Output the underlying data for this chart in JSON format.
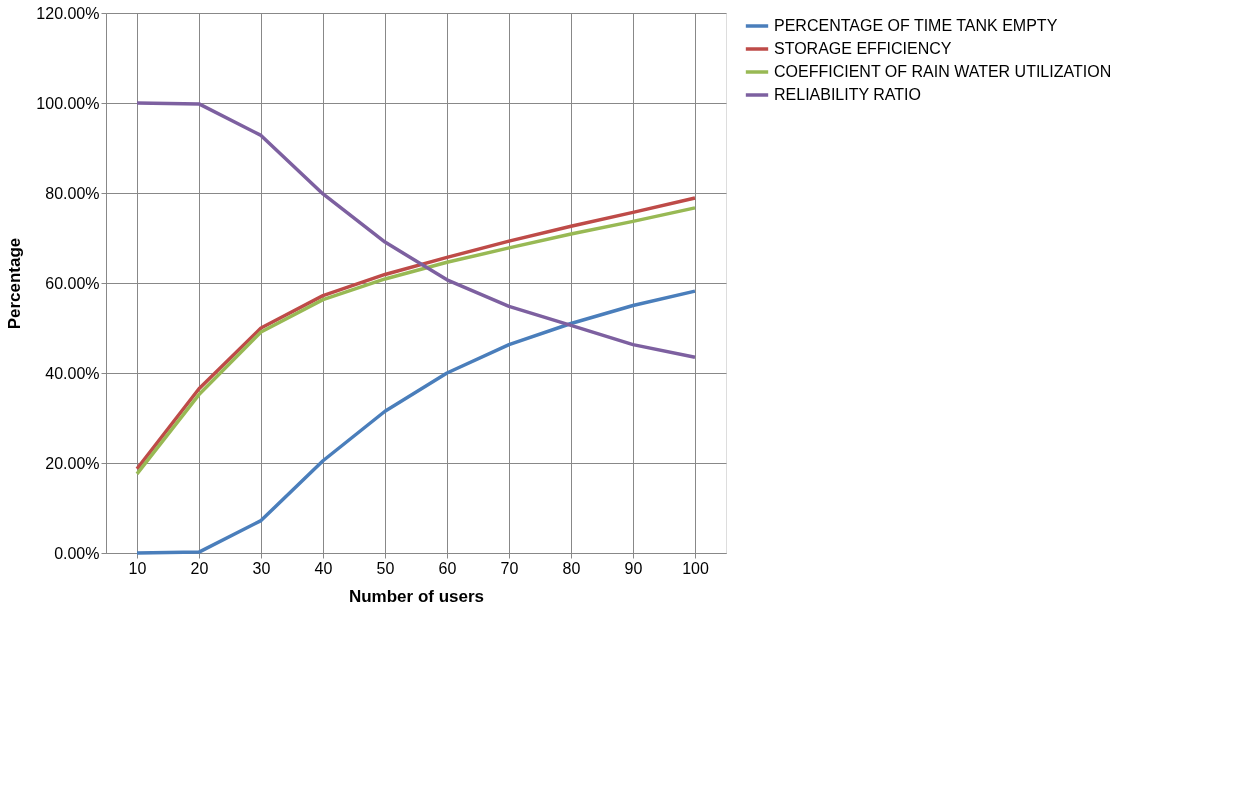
{
  "chart_data": {
    "type": "line",
    "xlabel": "Number of users",
    "ylabel": "Percentage",
    "categories": [
      "10",
      "20",
      "30",
      "40",
      "50",
      "60",
      "70",
      "80",
      "90",
      "100"
    ],
    "ylim": [
      0,
      120
    ],
    "yticks": [
      {
        "value": 0,
        "label": "0.00%"
      },
      {
        "value": 20,
        "label": "20.00%"
      },
      {
        "value": 40,
        "label": "40.00%"
      },
      {
        "value": 60,
        "label": "60.00%"
      },
      {
        "value": 80,
        "label": "80.00%"
      },
      {
        "value": 100,
        "label": "100.00%"
      },
      {
        "value": 120,
        "label": "120.00%"
      }
    ],
    "grid": true,
    "legend": "right",
    "marker": "none",
    "line_style": "solid",
    "series": [
      {
        "name": "PERCENTAGE OF TIME TANK EMPTY",
        "color": "#4a7ebb",
        "values": [
          0,
          0.2,
          7.2,
          20.5,
          31.5,
          40,
          46.3,
          51,
          55,
          58.2
        ]
      },
      {
        "name": "STORAGE EFFICIENCY",
        "color": "#be4b48",
        "values": [
          18.7,
          36.5,
          50,
          57.2,
          61.9,
          65.7,
          69.3,
          72.6,
          75.7,
          78.9
        ]
      },
      {
        "name": "COEFFICIENT OF RAIN WATER UTILIZATION",
        "color": "#98b954",
        "values": [
          17.6,
          35.2,
          49.1,
          56.3,
          60.9,
          64.6,
          67.8,
          70.9,
          73.7,
          76.7
        ]
      },
      {
        "name": "RELIABILITY RATIO",
        "color": "#7d60a0",
        "values": [
          100,
          99.8,
          92.8,
          79.8,
          69.1,
          60.7,
          54.8,
          50.6,
          46.3,
          43.5
        ]
      }
    ]
  }
}
